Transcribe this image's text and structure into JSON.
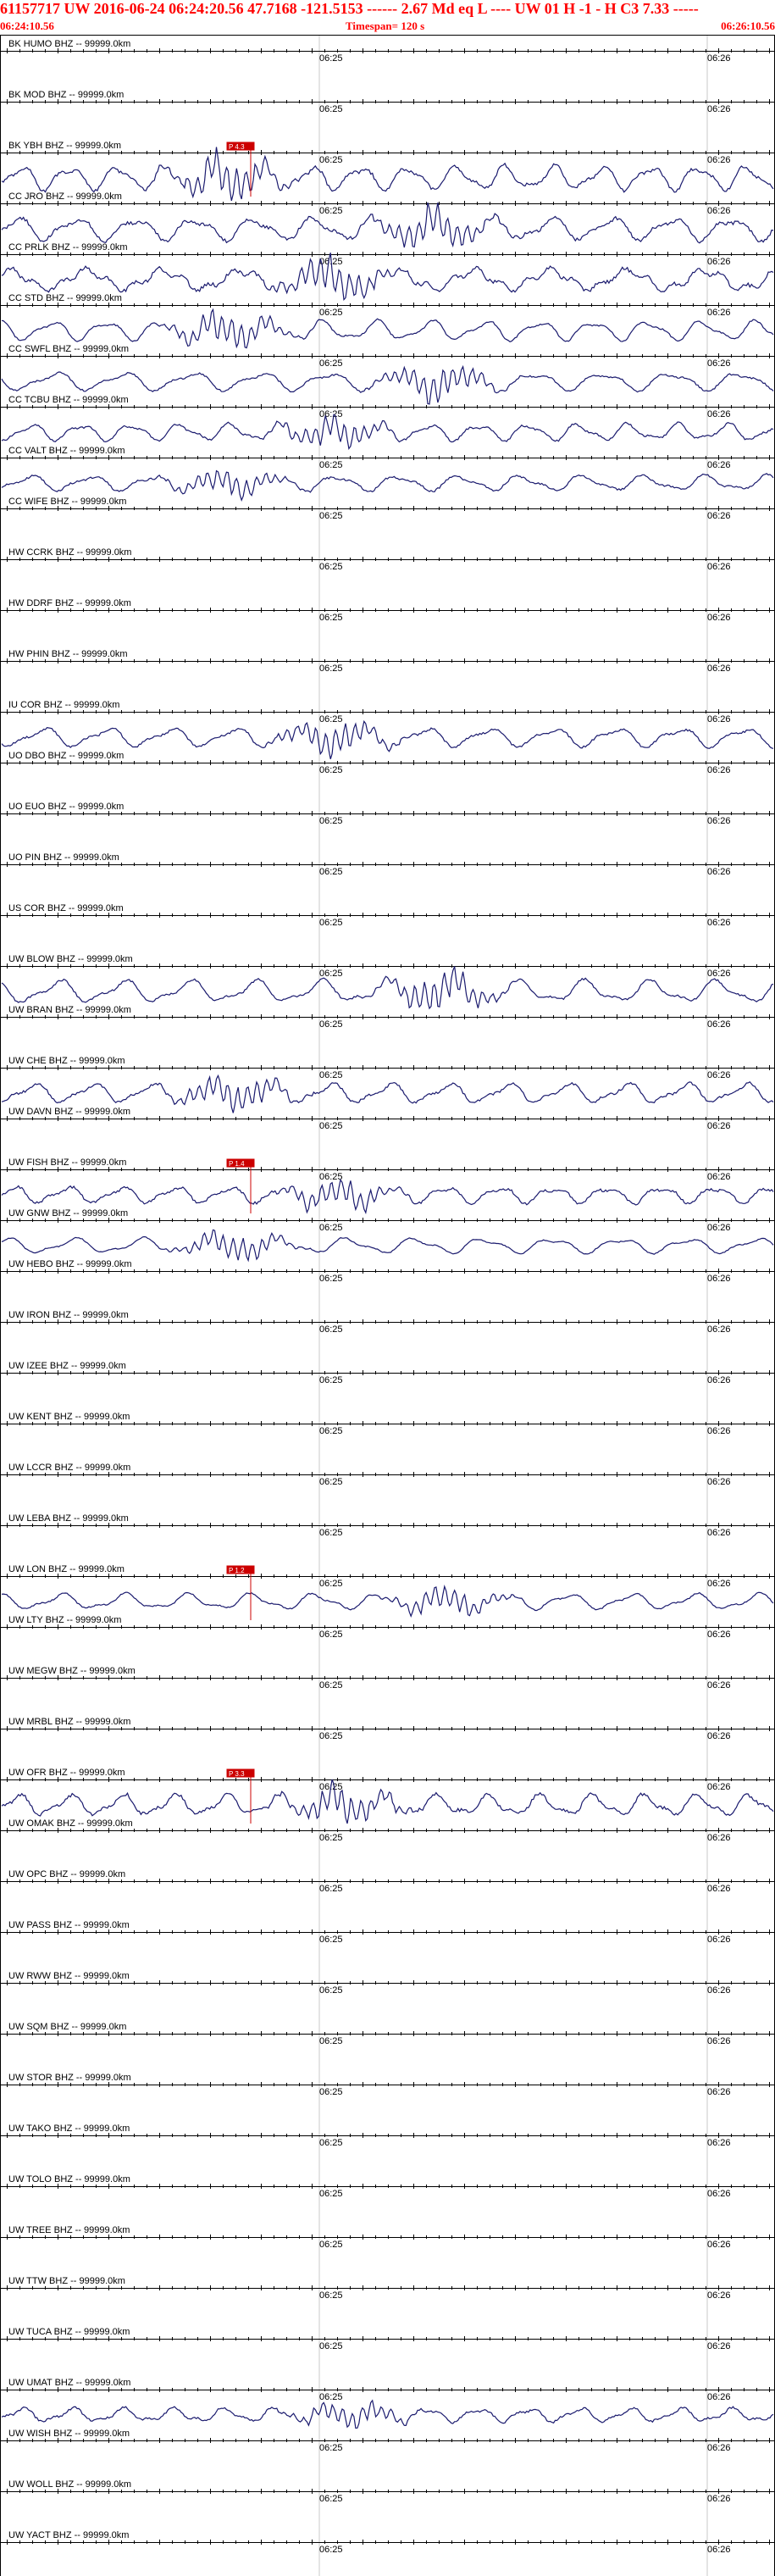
{
  "header": {
    "title": "61157717 UW 2016-06-24 06:24:20.56   47.7168  -121.5153  ------   2.67  Md   eq   L ----      UW 01   H   -1   -   H C3    7.33  -----",
    "start_time": "06:24:10.56",
    "timespan": "Timespan= 120 s",
    "end_time": "06:26:10.56"
  },
  "time_axis": {
    "mid_label": "06:25",
    "end_label": "06:26"
  },
  "colors": {
    "header_text": "#ff0000",
    "trace": "#1a1a6e",
    "pick": "#cc0000",
    "axis": "#000000"
  },
  "traces": [
    {
      "label": "BK HUMO BHZ -- 99999.0km",
      "signal": false,
      "pick": null
    },
    {
      "label": "BK MOD BHZ -- 99999.0km",
      "signal": false,
      "pick": null
    },
    {
      "label": "BK YBH BHZ -- 99999.0km",
      "signal": true,
      "pick": {
        "text": "P 4.3"
      }
    },
    {
      "label": "CC JRO BHZ -- 99999.0km",
      "signal": true,
      "pick": null
    },
    {
      "label": "CC PRLK BHZ -- 99999.0km",
      "signal": true,
      "pick": null
    },
    {
      "label": "CC STD BHZ -- 99999.0km",
      "signal": true,
      "pick": null
    },
    {
      "label": "CC SWFL BHZ -- 99999.0km",
      "signal": true,
      "pick": null
    },
    {
      "label": "CC TCBU BHZ -- 99999.0km",
      "signal": true,
      "pick": null
    },
    {
      "label": "CC VALT BHZ -- 99999.0km",
      "signal": true,
      "pick": null
    },
    {
      "label": "CC WIFE BHZ -- 99999.0km",
      "signal": false,
      "pick": null
    },
    {
      "label": "HW CCRK BHZ -- 99999.0km",
      "signal": false,
      "pick": null
    },
    {
      "label": "HW DDRF BHZ -- 99999.0km",
      "signal": false,
      "pick": null
    },
    {
      "label": "HW PHIN BHZ -- 99999.0km",
      "signal": false,
      "pick": null
    },
    {
      "label": "IU COR BHZ -- 99999.0km",
      "signal": true,
      "pick": null
    },
    {
      "label": "UO DBO BHZ -- 99999.0km",
      "signal": false,
      "pick": null
    },
    {
      "label": "UO EUO BHZ -- 99999.0km",
      "signal": false,
      "pick": null
    },
    {
      "label": "UO PIN BHZ -- 99999.0km",
      "signal": false,
      "pick": null
    },
    {
      "label": "US COR BHZ -- 99999.0km",
      "signal": false,
      "pick": null
    },
    {
      "label": "UW BLOW BHZ -- 99999.0km",
      "signal": true,
      "pick": null
    },
    {
      "label": "UW BRAN BHZ -- 99999.0km",
      "signal": false,
      "pick": null
    },
    {
      "label": "UW CHE BHZ -- 99999.0km",
      "signal": true,
      "pick": null
    },
    {
      "label": "UW DAVN BHZ -- 99999.0km",
      "signal": false,
      "pick": null
    },
    {
      "label": "UW FISH BHZ -- 99999.0km",
      "signal": true,
      "pick": {
        "text": "P 1.4"
      }
    },
    {
      "label": "UW GNW BHZ -- 99999.0km",
      "signal": true,
      "pick": null
    },
    {
      "label": "UW HEBO BHZ -- 99999.0km",
      "signal": false,
      "pick": null
    },
    {
      "label": "UW IRON BHZ -- 99999.0km",
      "signal": false,
      "pick": null
    },
    {
      "label": "UW IZEE BHZ -- 99999.0km",
      "signal": false,
      "pick": null
    },
    {
      "label": "UW KENT BHZ -- 99999.0km",
      "signal": false,
      "pick": null
    },
    {
      "label": "UW LCCR BHZ -- 99999.0km",
      "signal": false,
      "pick": null
    },
    {
      "label": "UW LEBA BHZ -- 99999.0km",
      "signal": false,
      "pick": null
    },
    {
      "label": "UW LON BHZ -- 99999.0km",
      "signal": true,
      "pick": {
        "text": "P 1.2"
      }
    },
    {
      "label": "UW LTY BHZ -- 99999.0km",
      "signal": false,
      "pick": null
    },
    {
      "label": "UW MEGW BHZ -- 99999.0km",
      "signal": false,
      "pick": null
    },
    {
      "label": "UW MRBL BHZ -- 99999.0km",
      "signal": false,
      "pick": null
    },
    {
      "label": "UW OFR BHZ -- 99999.0km",
      "signal": true,
      "pick": {
        "text": "P 3.3"
      }
    },
    {
      "label": "UW OMAK BHZ -- 99999.0km",
      "signal": false,
      "pick": null
    },
    {
      "label": "UW OPC BHZ -- 99999.0km",
      "signal": false,
      "pick": null
    },
    {
      "label": "UW PASS BHZ -- 99999.0km",
      "signal": false,
      "pick": null
    },
    {
      "label": "UW RWW BHZ -- 99999.0km",
      "signal": false,
      "pick": null
    },
    {
      "label": "UW SQM BHZ -- 99999.0km",
      "signal": false,
      "pick": null
    },
    {
      "label": "UW STOR BHZ -- 99999.0km",
      "signal": false,
      "pick": null
    },
    {
      "label": "UW TAKO BHZ -- 99999.0km",
      "signal": false,
      "pick": null
    },
    {
      "label": "UW TOLO BHZ -- 99999.0km",
      "signal": false,
      "pick": null
    },
    {
      "label": "UW TREE BHZ -- 99999.0km",
      "signal": false,
      "pick": null
    },
    {
      "label": "UW TTW BHZ -- 99999.0km",
      "signal": false,
      "pick": null
    },
    {
      "label": "UW TUCA BHZ -- 99999.0km",
      "signal": false,
      "pick": null
    },
    {
      "label": "UW UMAT BHZ -- 99999.0km",
      "signal": true,
      "pick": null
    },
    {
      "label": "UW WISH BHZ -- 99999.0km",
      "signal": false,
      "pick": null
    },
    {
      "label": "UW WOLL BHZ -- 99999.0km",
      "signal": false,
      "pick": null
    },
    {
      "label": "UW YACT BHZ -- 99999.0km",
      "signal": false,
      "pick": null
    }
  ]
}
